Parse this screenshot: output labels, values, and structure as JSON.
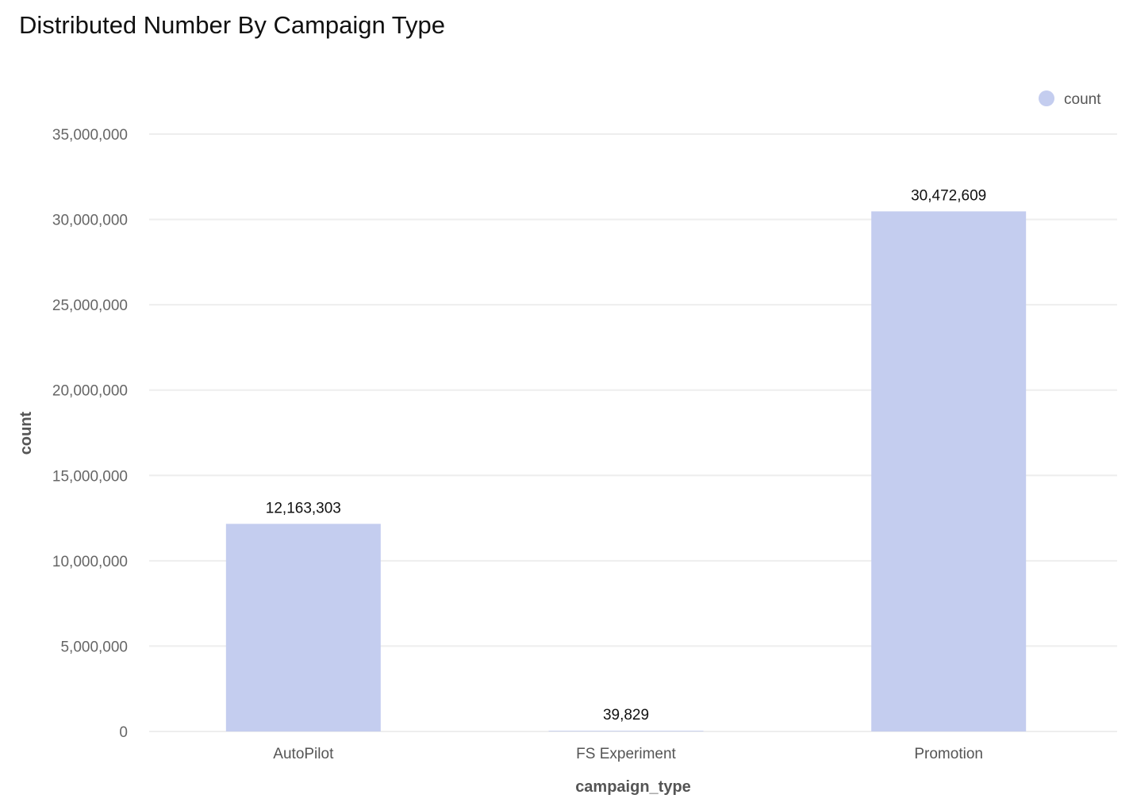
{
  "chart_data": {
    "type": "bar",
    "title": "Distributed Number By Campaign Type",
    "xlabel": "campaign_type",
    "ylabel": "count",
    "categories": [
      "AutoPilot",
      "FS Experiment",
      "Promotion"
    ],
    "series": [
      {
        "name": "count",
        "values": [
          12163303,
          39829,
          30472609
        ],
        "labels": [
          "12,163,303",
          "39,829",
          "30,472,609"
        ]
      }
    ],
    "ylim": [
      0,
      35000000
    ],
    "yticks": [
      0,
      5000000,
      10000000,
      15000000,
      20000000,
      25000000,
      30000000,
      35000000
    ],
    "ytick_labels": [
      "0",
      "5,000,000",
      "10,000,000",
      "15,000,000",
      "20,000,000",
      "25,000,000",
      "30,000,000",
      "35,000,000"
    ],
    "grid": true,
    "legend": {
      "placement": "top-right"
    },
    "colors": {
      "bar": "#c4cdef",
      "grid": "#eeeeee"
    }
  }
}
